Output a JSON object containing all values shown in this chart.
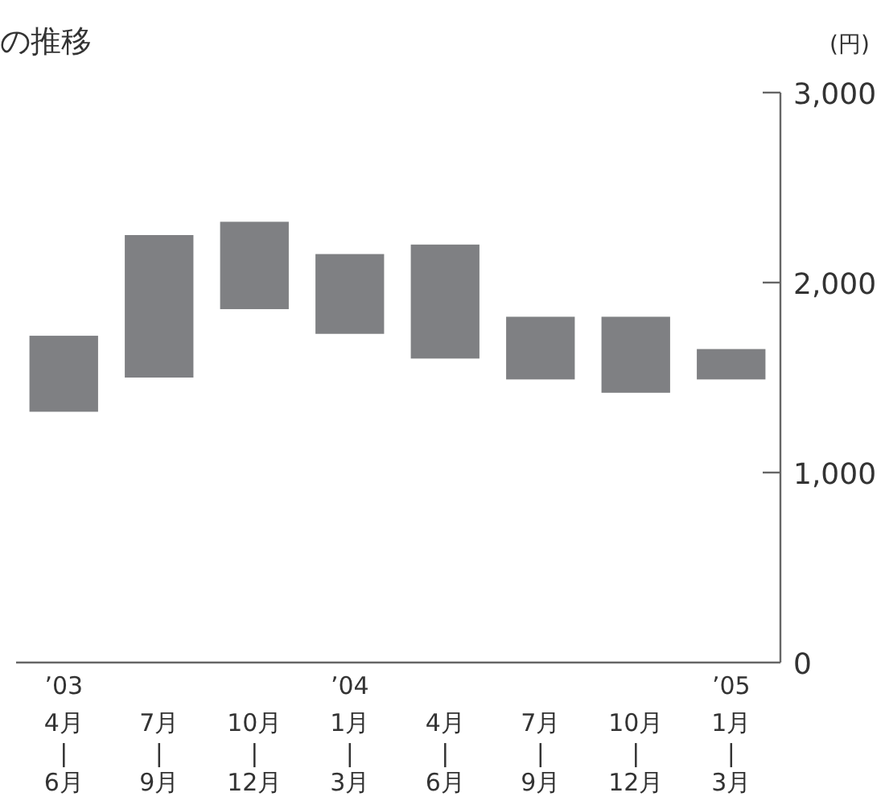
{
  "chart_data": {
    "type": "bar",
    "title": "の推移",
    "ylabel": "(円)",
    "categories": [
      "’03\n4月\n|\n6月",
      "7月\n|\n9月",
      "10月\n|\n12月",
      "’04\n1月\n|\n3月",
      "4月\n|\n6月",
      "7月\n|\n9月",
      "10月\n|\n12月",
      "’05\n1月\n|\n3月"
    ],
    "base": [
      1320,
      1500,
      1860,
      1730,
      1600,
      1490,
      1420,
      1490
    ],
    "values": [
      400,
      750,
      460,
      420,
      600,
      330,
      400,
      160
    ],
    "color": "#7f8083",
    "ylim": [
      0,
      3000
    ],
    "yticks": [
      0,
      {
        "value": 1000,
        "label": "1,000"
      },
      {
        "value": 2000,
        "label": "2,000"
      },
      {
        "value": 3000,
        "label": "3,000"
      }
    ]
  }
}
